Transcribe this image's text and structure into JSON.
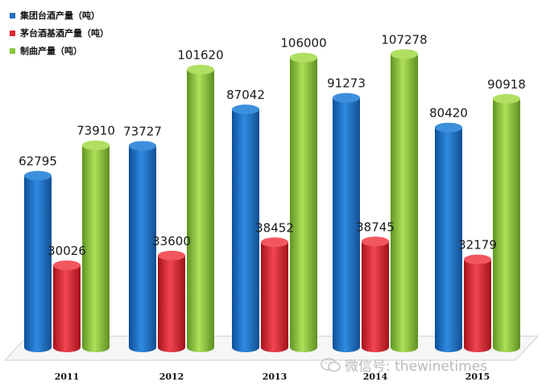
{
  "chart_data": {
    "type": "bar",
    "categories": [
      "2011",
      "2012",
      "2013",
      "2014",
      "2015"
    ],
    "series": [
      {
        "name": "集团台酒产量（吨）",
        "color": "#1f6fc3",
        "values": [
          62795,
          73727,
          87042,
          91273,
          80420
        ]
      },
      {
        "name": "茅台酒基酒产量（吨）",
        "color": "#e02633",
        "values": [
          30026,
          33600,
          38452,
          38745,
          32179
        ]
      },
      {
        "name": "制曲产量（吨）",
        "color": "#8ac43f",
        "values": [
          73910,
          101620,
          106000,
          107278,
          90918
        ]
      }
    ],
    "ylim": [
      0,
      110000
    ],
    "grid": false,
    "legend": "top-left"
  },
  "watermark": {
    "text": "微信号: thewinetimes",
    "icon": "wechat-icon"
  }
}
